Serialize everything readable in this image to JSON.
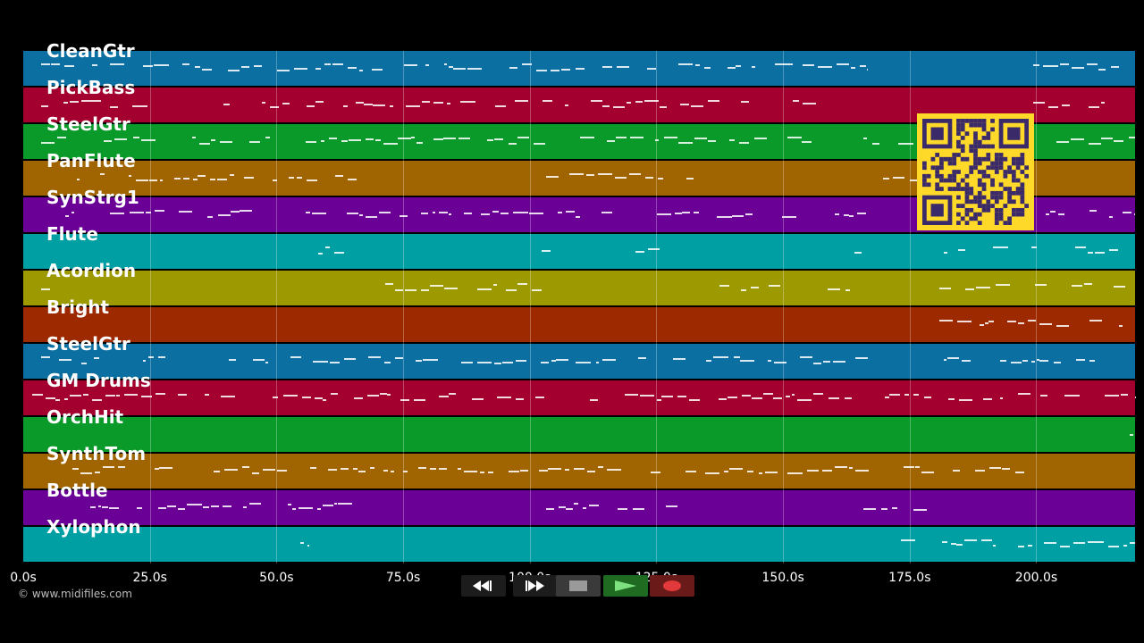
{
  "tracks": [
    {
      "name": "CleanGtr",
      "color": "#0b6fa1"
    },
    {
      "name": "PickBass",
      "color": "#a3002f"
    },
    {
      "name": "SteelGtr",
      "color": "#0a9a2a"
    },
    {
      "name": "PanFlute",
      "color": "#a06500"
    },
    {
      "name": "SynStrg1",
      "color": "#6a0096"
    },
    {
      "name": "Flute",
      "color": "#009fa3"
    },
    {
      "name": "Acordion",
      "color": "#9c9a00"
    },
    {
      "name": "Bright",
      "color": "#9c2900"
    },
    {
      "name": "SteelGtr",
      "color": "#0b6fa1"
    },
    {
      "name": "GM Drums",
      "color": "#a3002f"
    },
    {
      "name": "OrchHit",
      "color": "#0a9a2a"
    },
    {
      "name": "SynthTom",
      "color": "#a06500"
    },
    {
      "name": "Bottle",
      "color": "#6a0096"
    },
    {
      "name": "Xylophon",
      "color": "#009fa3"
    }
  ],
  "time_axis": {
    "ticks": [
      "0.0s",
      "25.0s",
      "50.0s",
      "75.0s",
      "100.0s",
      "125.0s",
      "150.0s",
      "175.0s",
      "200.0s"
    ],
    "tick_values": [
      0,
      25,
      50,
      75,
      100,
      125,
      150,
      175,
      200
    ],
    "max_seconds": 219.5
  },
  "transport": {
    "buttons": [
      {
        "name": "rewind-button",
        "icon": "rewind-icon"
      },
      {
        "name": "fast-forward-button",
        "icon": "fast-forward-icon"
      },
      {
        "name": "stop-button",
        "icon": "stop-icon"
      },
      {
        "name": "play-button",
        "icon": "play-icon"
      },
      {
        "name": "record-button",
        "icon": "record-icon"
      }
    ]
  },
  "copyright": "© www.midifiles.com",
  "qr_code": {
    "icon": "qr-code-icon",
    "color": "#ffd92a"
  }
}
